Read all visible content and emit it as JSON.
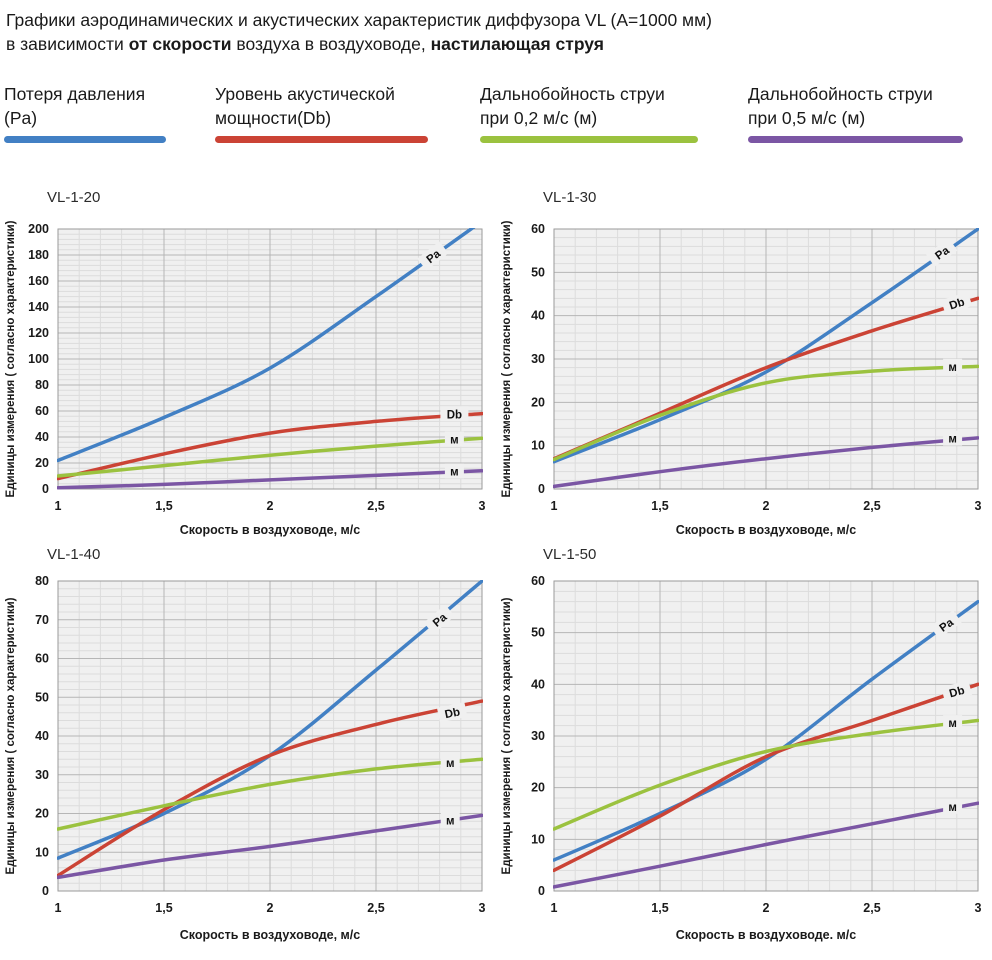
{
  "header": {
    "line1": "Графики аэродинамических и акустических характеристик  диффузора VL (А=1000 мм)",
    "line2_n1": "в зависимости ",
    "line2_b1": "от скорости",
    "line2_n2": " воздуха в воздуховоде, ",
    "line2_b2": "настилающая струя"
  },
  "colors": {
    "blue": "#4280c4",
    "red": "#cb4335",
    "green": "#9bc23f",
    "purple": "#7b56a4",
    "plot_bg": "#f0f0f0",
    "grid_minor": "#dcdcdc",
    "grid_major": "#b6b6b6",
    "plot_border": "#9a9a9a",
    "text": "#1a1a1a"
  },
  "legend": {
    "items": [
      {
        "line1": "Потеря давления",
        "line2": "(Pa)",
        "color": "blue"
      },
      {
        "line1": "Уровень акустической",
        "line2": "мощности(Db)",
        "color": "red"
      },
      {
        "line1": "Дальнобойность струи",
        "line2": "при 0,2 м/с (м)",
        "color": "green"
      },
      {
        "line1": "Дальнобойность струи",
        "line2": "при 0,5 м/с (м)",
        "color": "purple"
      }
    ]
  },
  "chart_data": [
    {
      "type": "line",
      "title": "VL-1-20",
      "xlabel": "Скорость в воздуховоде, м/с",
      "ylabel": "Единицы измерения ( согласно характеристики)",
      "x": [
        1,
        1.5,
        2,
        2.5,
        3
      ],
      "xticks": [
        "1",
        "1,5",
        "2",
        "2,5",
        "3"
      ],
      "yticks": [
        "0",
        "20",
        "40",
        "60",
        "80",
        "100",
        "120",
        "140",
        "160",
        "180",
        "200"
      ],
      "ylim": [
        0,
        200
      ],
      "ystep": 20,
      "yminor": 4,
      "xminor": 0.1,
      "series": [
        {
          "name": "Потеря давления (Pa)",
          "label": "Pa",
          "color": "blue",
          "values": [
            22,
            55,
            93,
            148,
            206
          ],
          "label_x": 2.77,
          "label_y": 179,
          "label_rotate": -38
        },
        {
          "name": "Уровень акустической мощности (Db)",
          "label": "Db",
          "color": "red",
          "values": [
            8,
            27,
            43,
            52,
            58
          ],
          "label_x": 2.87,
          "label_y": 57.5,
          "label_rotate": 0
        },
        {
          "name": "Дальнобойность струи при 0,2 м/с (м)",
          "label": "м",
          "color": "green",
          "values": [
            10,
            18,
            26,
            33,
            39
          ],
          "label_x": 2.87,
          "label_y": 38,
          "label_rotate": 0
        },
        {
          "name": "Дальнобойность струи при 0,5 м/с (м)",
          "label": "м",
          "color": "purple",
          "values": [
            1,
            3.5,
            7,
            10.5,
            14
          ],
          "label_x": 2.87,
          "label_y": 13.5,
          "label_rotate": 0
        }
      ]
    },
    {
      "type": "line",
      "title": "VL-1-30",
      "xlabel": "Скорость в воздуховоде, м/с",
      "ylabel": "Единицы измерения ( согласно характеристики)",
      "x": [
        1,
        1.5,
        2,
        2.5,
        3
      ],
      "xticks": [
        "1",
        "1,5",
        "2",
        "2,5",
        "3"
      ],
      "yticks": [
        "0",
        "10",
        "20",
        "30",
        "40",
        "50",
        "60"
      ],
      "ylim": [
        0,
        60
      ],
      "ystep": 10,
      "yminor": 2,
      "xminor": 0.1,
      "series": [
        {
          "name": "Потеря давления (Pa)",
          "label": "Pa",
          "color": "blue",
          "values": [
            6.3,
            16,
            27,
            43,
            60
          ],
          "label_x": 2.83,
          "label_y": 54.5,
          "label_rotate": -35
        },
        {
          "name": "Уровень акустической мощности (Db)",
          "label": "Db",
          "color": "red",
          "values": [
            7,
            17.5,
            28,
            36.5,
            44
          ],
          "label_x": 2.9,
          "label_y": 42.8,
          "label_rotate": -18
        },
        {
          "name": "Дальнобойность струи при 0,2 м/с (м)",
          "label": "м",
          "color": "green",
          "values": [
            6.8,
            17,
            24.5,
            27.2,
            28.3
          ],
          "label_x": 2.88,
          "label_y": 28.2,
          "label_rotate": 0
        },
        {
          "name": "Дальнобойность струи при 0,5 м/с (м)",
          "label": "м",
          "color": "purple",
          "values": [
            0.6,
            4,
            7,
            9.6,
            11.8
          ],
          "label_x": 2.88,
          "label_y": 11.6,
          "label_rotate": 0
        }
      ]
    },
    {
      "type": "line",
      "title": "VL-1-40",
      "xlabel": "Скорость в воздуховоде, м/с",
      "ylabel": "Единицы измерения ( согласно характеристики)",
      "x": [
        1,
        1.5,
        2,
        2.5,
        3
      ],
      "xticks": [
        "1",
        "1,5",
        "2",
        "2,5",
        "3"
      ],
      "yticks": [
        "0",
        "10",
        "20",
        "30",
        "40",
        "50",
        "60",
        "70",
        "80"
      ],
      "ylim": [
        0,
        80
      ],
      "ystep": 10,
      "yminor": 2,
      "xminor": 0.1,
      "series": [
        {
          "name": "Потеря давления (Pa)",
          "label": "Pa",
          "color": "blue",
          "values": [
            8.5,
            20,
            35,
            57,
            80
          ],
          "label_x": 2.8,
          "label_y": 70,
          "label_rotate": -40
        },
        {
          "name": "Уровень акустической мощности (Db)",
          "label": "Db",
          "color": "red",
          "values": [
            4,
            21,
            35,
            43,
            49
          ],
          "label_x": 2.86,
          "label_y": 46,
          "label_rotate": -12
        },
        {
          "name": "Дальнобойность струи при 0,2 м/с (м)",
          "label": "м",
          "color": "green",
          "values": [
            16,
            22,
            27.5,
            31.5,
            34
          ],
          "label_x": 2.85,
          "label_y": 33,
          "label_rotate": 0
        },
        {
          "name": "Дальнобойность струи при 0,5 м/с (м)",
          "label": "м",
          "color": "purple",
          "values": [
            3.5,
            8,
            11.5,
            15.5,
            19.5
          ],
          "label_x": 2.85,
          "label_y": 18.2,
          "label_rotate": 0
        }
      ]
    },
    {
      "type": "line",
      "title": "VL-1-50",
      "xlabel": "Скорость в воздуховоде. м/с",
      "ylabel": "Единицы измерения ( согласно характеристики)",
      "x": [
        1,
        1.5,
        2,
        2.5,
        3
      ],
      "xticks": [
        "1",
        "1,5",
        "2",
        "2,5",
        "3"
      ],
      "yticks": [
        "0",
        "10",
        "20",
        "30",
        "40",
        "50",
        "60"
      ],
      "ylim": [
        0,
        60
      ],
      "ystep": 10,
      "yminor": 2,
      "xminor": 0.1,
      "series": [
        {
          "name": "Потеря давления (Pa)",
          "label": "Pa",
          "color": "blue",
          "values": [
            6,
            15,
            25.5,
            41,
            56
          ],
          "label_x": 2.85,
          "label_y": 51.5,
          "label_rotate": -35
        },
        {
          "name": "Уровень акустической мощности (Db)",
          "label": "Db",
          "color": "red",
          "values": [
            4,
            14.5,
            26,
            33,
            40
          ],
          "label_x": 2.9,
          "label_y": 38.6,
          "label_rotate": -15
        },
        {
          "name": "Дальнобойность струи при 0,2 м/с (м)",
          "label": "м",
          "color": "green",
          "values": [
            12,
            20.5,
            27,
            30.5,
            33
          ],
          "label_x": 2.88,
          "label_y": 32.5,
          "label_rotate": 0
        },
        {
          "name": "Дальнобойность струи при 0,5 м/с (м)",
          "label": "м",
          "color": "purple",
          "values": [
            0.8,
            4.8,
            9,
            13,
            17
          ],
          "label_x": 2.88,
          "label_y": 16.3,
          "label_rotate": 0
        }
      ]
    }
  ]
}
